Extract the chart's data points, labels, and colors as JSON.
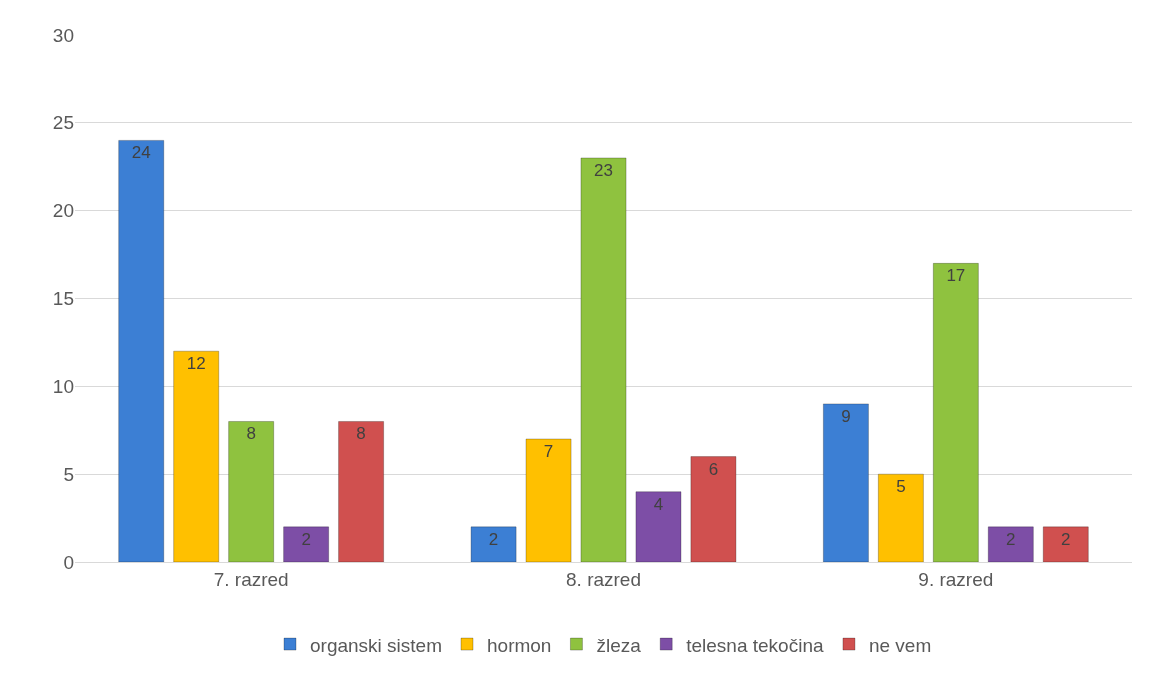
{
  "chart_data": {
    "type": "bar",
    "categories": [
      "7. razred",
      "8. razred",
      "9. razred"
    ],
    "series": [
      {
        "name": "organski sistem",
        "color": "#3c7fd4",
        "values": [
          24,
          2,
          9
        ]
      },
      {
        "name": "hormon",
        "color": "#ffc000",
        "values": [
          12,
          7,
          5
        ]
      },
      {
        "name": "žleza",
        "color": "#8fc23f",
        "values": [
          8,
          23,
          17
        ]
      },
      {
        "name": "telesna tekočina",
        "color": "#7d4ea6",
        "values": [
          2,
          4,
          2
        ]
      },
      {
        "name": "ne vem",
        "color": "#d0504f",
        "values": [
          8,
          6,
          2
        ]
      }
    ],
    "ylim": [
      0,
      30
    ],
    "yticks": [
      0,
      5,
      10,
      15,
      20,
      25,
      30
    ],
    "grid": "y",
    "legend": "bottom",
    "data_labels": true
  }
}
